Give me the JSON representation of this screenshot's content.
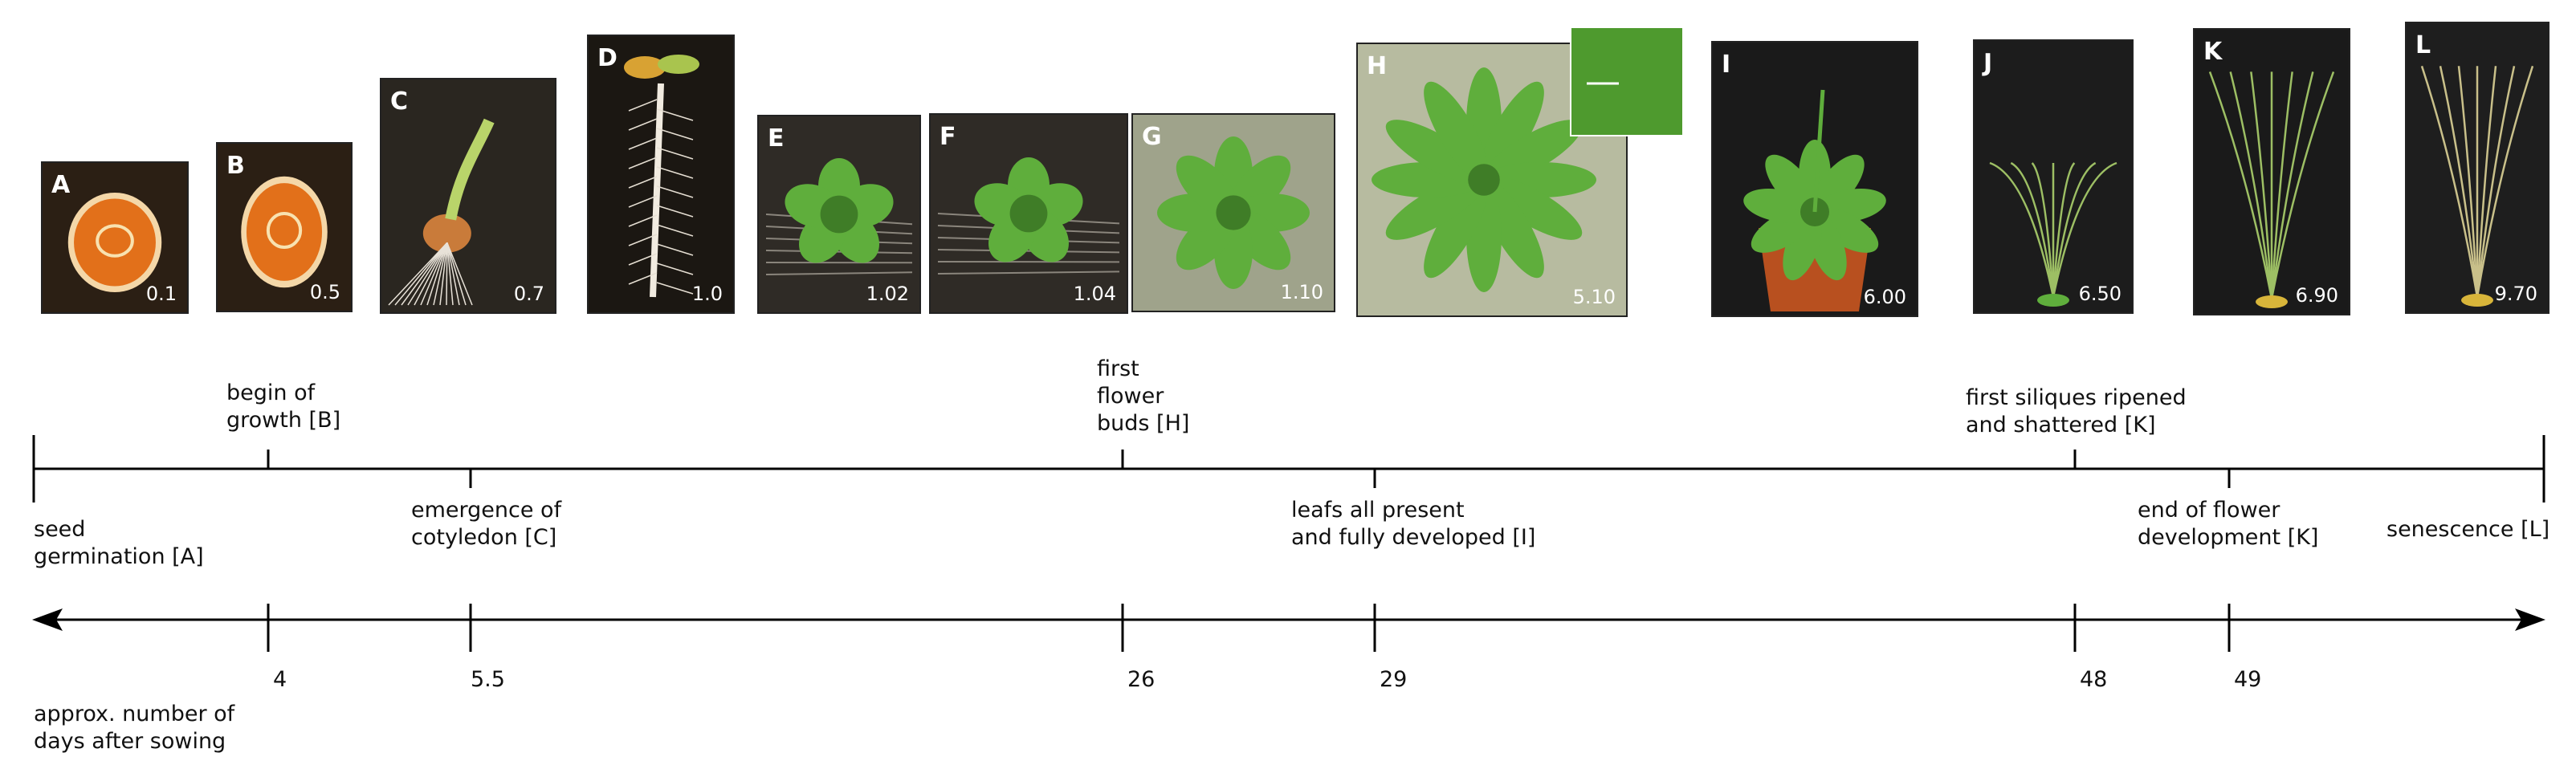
{
  "panels": [
    {
      "letter": "A",
      "stage": "0.1",
      "kind": "seed"
    },
    {
      "letter": "B",
      "stage": "0.5",
      "kind": "seed"
    },
    {
      "letter": "C",
      "stage": "0.7",
      "kind": "sprout"
    },
    {
      "letter": "D",
      "stage": "1.0",
      "kind": "seedling"
    },
    {
      "letter": "E",
      "stage": "1.02",
      "kind": "young"
    },
    {
      "letter": "F",
      "stage": "1.04",
      "kind": "young"
    },
    {
      "letter": "G",
      "stage": "1.10",
      "kind": "rosette-small"
    },
    {
      "letter": "H",
      "stage": "5.10",
      "kind": "rosette-large"
    },
    {
      "letter": "I",
      "stage": "6.00",
      "kind": "potted"
    },
    {
      "letter": "J",
      "stage": "6.50",
      "kind": "bolting"
    },
    {
      "letter": "K",
      "stage": "6.90",
      "kind": "tall"
    },
    {
      "letter": "L",
      "stage": "9.70",
      "kind": "senescent"
    }
  ],
  "upper_labels": [
    {
      "text": "begin of\ngrowth [B]"
    },
    {
      "text": "first\nflower\nbuds [H]"
    },
    {
      "text": "first siliques ripened\nand shattered [K]"
    }
  ],
  "lower_labels": [
    {
      "text": "seed\ngermination [A]"
    },
    {
      "text": "emergence of\ncotyledon [C]"
    },
    {
      "text": "leafs all present\nand fully developed [I]"
    },
    {
      "text": "end of flower\ndevelopment [K]"
    },
    {
      "text": "senescence [L]"
    }
  ],
  "day_ticks": [
    "4",
    "5.5",
    "26",
    "29",
    "48",
    "49"
  ],
  "axis_caption": "approx. number of\ndays after sowing",
  "colors": {
    "dark_bg": "#1e1a14",
    "leaf": "#5fae3c",
    "leaf_dark": "#3f7d27",
    "seed": "#e2701a",
    "pot": "#b8501f",
    "pale_bg": "#bfc3a8",
    "line": "#000000"
  }
}
